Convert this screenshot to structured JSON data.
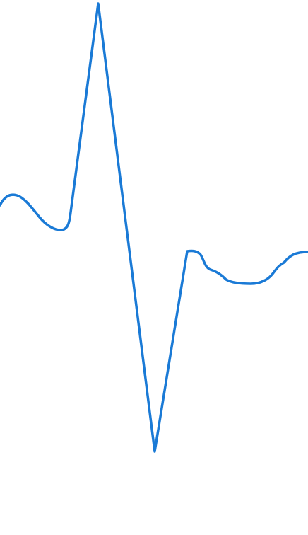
{
  "waveform": {
    "stroke_color": "#1a7ad6",
    "background_color": "#ffffff"
  }
}
